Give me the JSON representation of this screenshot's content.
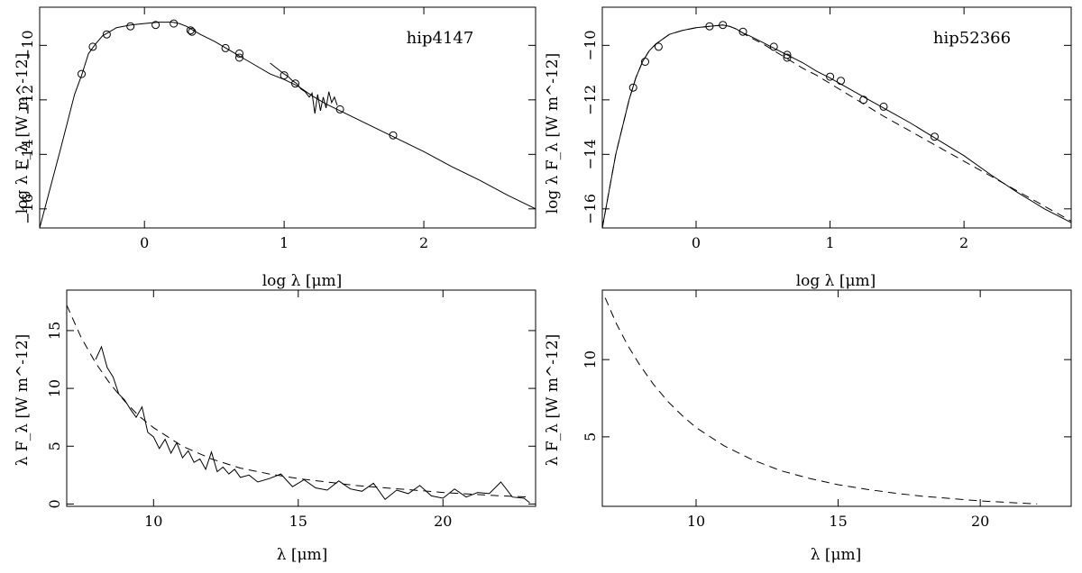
{
  "chart_data": [
    {
      "type": "line",
      "panel": "top-left",
      "title": "hip4147",
      "xlabel": "log λ [μm]",
      "ylabel": "log λ F_λ [W m^-12]",
      "xlim": [
        -0.75,
        2.8
      ],
      "ylim": [
        -16.7,
        -8.6
      ],
      "xticks": [
        0,
        1,
        2
      ],
      "xtick_labels": [
        "0",
        "1",
        "2"
      ],
      "yticks": [
        -16,
        -14,
        -12,
        -10
      ],
      "ytick_labels": [
        "−16",
        "−14",
        "−12",
        "−10"
      ],
      "series": [
        {
          "style": "solid",
          "x": [
            -0.75,
            -0.6,
            -0.5,
            -0.45,
            -0.4,
            -0.35,
            -0.3,
            -0.2,
            -0.1,
            0,
            0.1,
            0.2,
            0.25,
            0.3,
            0.35,
            0.4,
            0.5,
            0.6,
            0.7,
            0.8,
            0.9,
            1.0,
            1.1,
            1.2,
            1.3,
            1.4,
            1.6,
            1.8,
            2.0,
            2.2,
            2.4,
            2.6,
            2.8
          ],
          "y": [
            -16.7,
            -13.8,
            -11.8,
            -11.1,
            -10.3,
            -9.95,
            -9.65,
            -9.35,
            -9.25,
            -9.2,
            -9.15,
            -9.15,
            -9.2,
            -9.3,
            -9.45,
            -9.6,
            -9.85,
            -10.15,
            -10.45,
            -10.75,
            -11.05,
            -11.25,
            -11.5,
            -11.85,
            -12.15,
            -12.4,
            -12.9,
            -13.4,
            -13.9,
            -14.45,
            -14.95,
            -15.5,
            -16.0
          ]
        },
        {
          "style": "solid",
          "x": [
            0.9,
            0.95,
            1.0,
            1.03,
            1.06,
            1.09,
            1.12,
            1.15,
            1.18,
            1.2,
            1.22,
            1.24,
            1.26,
            1.28,
            1.3,
            1.32,
            1.34,
            1.36,
            1.38
          ],
          "y": [
            -10.65,
            -10.85,
            -11.05,
            -11.15,
            -11.3,
            -11.4,
            -11.6,
            -11.7,
            -11.9,
            -11.75,
            -12.5,
            -11.8,
            -12.4,
            -11.9,
            -12.3,
            -11.7,
            -12.1,
            -11.9,
            -12.2
          ]
        }
      ],
      "points": {
        "x": [
          -0.45,
          -0.37,
          -0.27,
          -0.1,
          0.08,
          0.21,
          0.33,
          0.34,
          0.58,
          0.68,
          0.68,
          1.0,
          1.08,
          1.4,
          1.78
        ],
        "y": [
          -11.05,
          -10.05,
          -9.6,
          -9.3,
          -9.25,
          -9.2,
          -9.45,
          -9.5,
          -10.1,
          -10.3,
          -10.45,
          -11.1,
          -11.4,
          -12.35,
          -13.3
        ]
      }
    },
    {
      "type": "line",
      "panel": "top-right",
      "title": "hip52366",
      "xlabel": "log λ [μm]",
      "ylabel": "log λ F_λ [W m^-12]",
      "xlim": [
        -0.7,
        2.8
      ],
      "ylim": [
        -16.7,
        -8.6
      ],
      "xticks": [
        0,
        1,
        2
      ],
      "xtick_labels": [
        "0",
        "1",
        "2"
      ],
      "yticks": [
        -16,
        -14,
        -12,
        -10
      ],
      "ytick_labels": [
        "−16",
        "−14",
        "−12",
        "−10"
      ],
      "series": [
        {
          "style": "solid",
          "x": [
            -0.7,
            -0.6,
            -0.5,
            -0.45,
            -0.4,
            -0.35,
            -0.3,
            -0.2,
            -0.1,
            0,
            0.1,
            0.2,
            0.25,
            0.3,
            0.35,
            0.4,
            0.5,
            0.6,
            0.7,
            0.8,
            0.9,
            1.0,
            1.2,
            1.4,
            1.6,
            1.8,
            2.0,
            2.2,
            2.4,
            2.6,
            2.8
          ],
          "y": [
            -16.7,
            -14.0,
            -12.0,
            -11.2,
            -10.6,
            -10.2,
            -9.95,
            -9.6,
            -9.45,
            -9.35,
            -9.3,
            -9.25,
            -9.3,
            -9.4,
            -9.55,
            -9.65,
            -9.9,
            -10.15,
            -10.4,
            -10.65,
            -10.95,
            -11.2,
            -11.75,
            -12.3,
            -12.85,
            -13.45,
            -14.05,
            -14.75,
            -15.4,
            -16.0,
            -16.5
          ]
        },
        {
          "style": "dashed",
          "x": [
            -0.7,
            -0.6,
            -0.5,
            -0.45,
            -0.4,
            -0.35,
            -0.3,
            -0.2,
            -0.1,
            0,
            0.1,
            0.2,
            0.25,
            0.3,
            0.35,
            0.4,
            0.5,
            0.6,
            0.7,
            0.8,
            0.9,
            1.0,
            1.2,
            1.4,
            1.6,
            1.8,
            2.0,
            2.2,
            2.4,
            2.6,
            2.8
          ],
          "y": [
            -16.7,
            -14.0,
            -12.0,
            -11.2,
            -10.6,
            -10.2,
            -9.95,
            -9.6,
            -9.45,
            -9.35,
            -9.3,
            -9.25,
            -9.3,
            -9.4,
            -9.55,
            -9.7,
            -9.95,
            -10.25,
            -10.55,
            -10.85,
            -11.1,
            -11.4,
            -12.0,
            -12.6,
            -13.15,
            -13.7,
            -14.25,
            -14.8,
            -15.35,
            -15.9,
            -16.45
          ]
        }
      ],
      "points": {
        "x": [
          -0.47,
          -0.38,
          -0.28,
          0.1,
          0.2,
          0.35,
          0.58,
          0.68,
          0.68,
          1.0,
          1.08,
          1.25,
          1.4,
          1.78
        ],
        "y": [
          -11.55,
          -10.6,
          -10.05,
          -9.3,
          -9.25,
          -9.5,
          -10.05,
          -10.35,
          -10.45,
          -11.15,
          -11.3,
          -12.0,
          -12.25,
          -13.35
        ]
      }
    },
    {
      "type": "line",
      "panel": "bottom-left",
      "xlabel": "λ [μm]",
      "ylabel": "λ F_λ [W m^-12]",
      "xlim": [
        7,
        23.2
      ],
      "ylim": [
        -0.2,
        18.5
      ],
      "xticks": [
        10,
        15,
        20
      ],
      "xtick_labels": [
        "10",
        "15",
        "20"
      ],
      "yticks": [
        0,
        5,
        10,
        15
      ],
      "ytick_labels": [
        "0",
        "5",
        "10",
        "15"
      ],
      "series": [
        {
          "style": "dashed",
          "x": [
            7,
            7.5,
            8,
            8.5,
            9,
            9.5,
            10,
            11,
            12,
            13,
            14,
            15,
            16,
            17,
            18,
            19,
            20,
            21,
            22,
            23
          ],
          "y": [
            17.2,
            14.4,
            12.2,
            10.4,
            8.9,
            7.6,
            6.6,
            5.0,
            3.9,
            3.1,
            2.6,
            2.2,
            1.9,
            1.6,
            1.4,
            1.2,
            1.0,
            0.85,
            0.7,
            0.6
          ]
        },
        {
          "style": "solid",
          "x": [
            8.0,
            8.2,
            8.4,
            8.6,
            8.8,
            9.0,
            9.2,
            9.4,
            9.6,
            9.8,
            10.0,
            10.2,
            10.4,
            10.6,
            10.8,
            11.0,
            11.2,
            11.4,
            11.6,
            11.8,
            12.0,
            12.2,
            12.4,
            12.6,
            12.8,
            13.0,
            13.3,
            13.6,
            14.0,
            14.4,
            14.8,
            15.2,
            15.6,
            16.0,
            16.4,
            16.8,
            17.2,
            17.6,
            18.0,
            18.4,
            18.8,
            19.2,
            19.6,
            20.0,
            20.4,
            20.8,
            21.2,
            21.6,
            22.0,
            22.4,
            22.8,
            23.0
          ],
          "y": [
            12.5,
            13.6,
            11.8,
            11.0,
            9.5,
            9.0,
            8.2,
            7.5,
            8.4,
            6.2,
            5.8,
            4.8,
            5.6,
            4.4,
            5.3,
            4.0,
            4.6,
            3.6,
            3.9,
            3.0,
            4.5,
            2.8,
            3.2,
            2.6,
            3.0,
            2.3,
            2.5,
            1.9,
            2.2,
            2.6,
            1.5,
            2.1,
            1.4,
            1.2,
            2.0,
            1.3,
            1.1,
            1.8,
            0.4,
            1.2,
            0.9,
            1.6,
            0.7,
            0.5,
            1.3,
            0.6,
            1.0,
            0.9,
            1.9,
            0.6,
            0.5,
            0.1
          ]
        }
      ]
    },
    {
      "type": "line",
      "panel": "bottom-right",
      "xlabel": "λ [μm]",
      "ylabel": "λ F_λ [W m^-12]",
      "xlim": [
        6.7,
        23.2
      ],
      "ylim": [
        0.5,
        14.5
      ],
      "xticks": [
        10,
        15,
        20
      ],
      "xtick_labels": [
        "10",
        "15",
        "20"
      ],
      "yticks": [
        5,
        10
      ],
      "ytick_labels": [
        "5",
        "10"
      ],
      "series": [
        {
          "style": "dashed",
          "x": [
            6.8,
            7.2,
            7.6,
            8,
            8.5,
            9,
            9.5,
            10,
            11,
            12,
            13,
            14,
            15,
            16,
            17,
            18,
            19,
            20,
            21,
            22
          ],
          "y": [
            14.0,
            12.3,
            10.9,
            9.7,
            8.4,
            7.3,
            6.4,
            5.6,
            4.4,
            3.5,
            2.8,
            2.3,
            1.9,
            1.6,
            1.35,
            1.15,
            1.0,
            0.85,
            0.75,
            0.65
          ]
        }
      ]
    }
  ]
}
